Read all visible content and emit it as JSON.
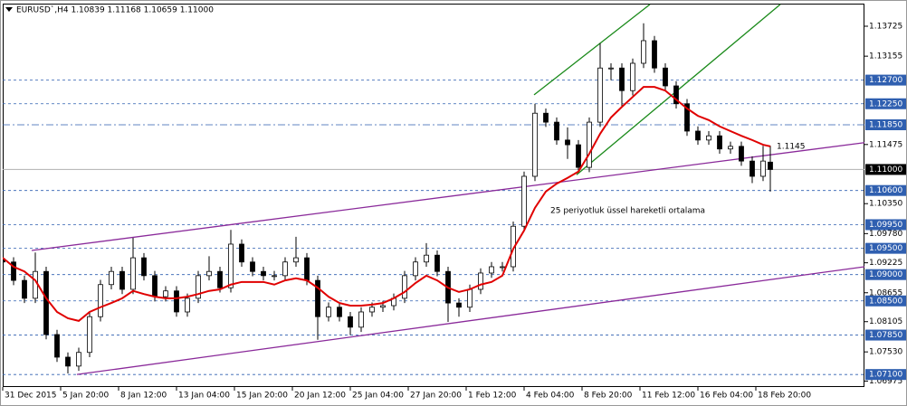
{
  "chart_data": {
    "type": "candlestick",
    "title": "EURUSD`,H4  1.10839 1.11168 1.10659 1.11000",
    "xlim": [
      0,
      238
    ],
    "ylim": [
      1.06862,
      1.14155
    ],
    "xticks": [
      {
        "value": 0,
        "label": "31 Dec 2015"
      },
      {
        "value": 16,
        "label": "5 Jan 20:00"
      },
      {
        "value": 32,
        "label": "8 Jan 12:00"
      },
      {
        "value": 48,
        "label": "13 Jan 04:00"
      },
      {
        "value": 64,
        "label": "15 Jan 20:00"
      },
      {
        "value": 80,
        "label": "20 Jan 12:00"
      },
      {
        "value": 96,
        "label": "25 Jan 04:00"
      },
      {
        "value": 112,
        "label": "27 Jan 20:00"
      },
      {
        "value": 128,
        "label": "1 Feb 12:00"
      },
      {
        "value": 144,
        "label": "4 Feb 04:00"
      },
      {
        "value": 160,
        "label": "8 Feb 20:00"
      },
      {
        "value": 176,
        "label": "11 Feb 12:00"
      },
      {
        "value": 192,
        "label": "16 Feb 04:00"
      },
      {
        "value": 208,
        "label": "18 Feb 20:00"
      }
    ],
    "yticks": [
      1.13725,
      1.13155,
      1.11475,
      {
        "value": 1.1035,
        "label": "1.10350"
      },
      {
        "value": 1.0978,
        "label": "1.09780"
      },
      1.09225,
      1.08655,
      1.08105,
      {
        "value": 1.0753,
        "label": "1.07530"
      },
      1.06975
    ],
    "levels": [
      {
        "value": 1.127,
        "label": "1.12700",
        "style": "dashed"
      },
      {
        "value": 1.1225,
        "label": "1.12250",
        "style": "dashed"
      },
      {
        "value": 1.1185,
        "label": "1.11850",
        "style": "dashdot"
      },
      {
        "value": 1.106,
        "label": "1.10600",
        "style": "dashed"
      },
      {
        "value": 1.0995,
        "label": "1.09950",
        "style": "dashed"
      },
      {
        "value": 1.095,
        "label": "1.09500",
        "style": "dashed"
      },
      {
        "value": 1.09,
        "label": "1.09000",
        "style": "dashed"
      },
      {
        "value": 1.085,
        "label": "1.08500",
        "style": "dashed"
      },
      {
        "value": 1.0785,
        "label": "1.07850",
        "style": "dashed"
      },
      {
        "value": 1.071,
        "label": "1.07100",
        "style": "dashed"
      }
    ],
    "level_color": "#2f5fb0",
    "current_price": {
      "value": 1.11,
      "label": "1.11000"
    },
    "x": [
      0,
      3,
      6,
      9,
      12,
      15,
      18,
      21,
      24,
      27,
      30,
      33,
      36,
      39,
      42,
      45,
      48,
      51,
      54,
      57,
      60,
      63,
      66,
      69,
      72,
      75,
      78,
      81,
      84,
      87,
      90,
      93,
      96,
      99,
      102,
      105,
      108,
      111,
      114,
      117,
      120,
      123,
      126,
      129,
      132,
      135,
      138,
      141,
      144,
      147,
      150,
      153,
      156,
      159,
      162,
      165,
      168,
      171,
      174,
      177,
      180,
      183,
      186,
      189,
      192,
      195,
      198,
      201,
      204,
      207,
      210,
      212
    ],
    "open": [
      1.093,
      1.0924,
      1.0889,
      1.0855,
      1.0906,
      1.0786,
      1.0743,
      1.0726,
      1.0752,
      1.082,
      1.0881,
      1.0906,
      1.0872,
      1.0932,
      1.0898,
      1.0858,
      1.0869,
      1.0829,
      1.0855,
      1.0898,
      1.0906,
      1.0875,
      1.0958,
      1.0924,
      1.0906,
      1.0898,
      1.0898,
      1.0924,
      1.0932,
      1.0889,
      1.082,
      1.0838,
      1.082,
      1.08,
      1.0829,
      1.0838,
      1.0841,
      1.0855,
      1.0898,
      1.0924,
      1.0937,
      1.0906,
      1.0846,
      1.0838,
      1.0872,
      1.0903,
      1.0915,
      1.0915,
      1.0992,
      1.1087,
      1.1207,
      1.119,
      1.1156,
      1.1147,
      1.1104,
      1.119,
      1.1293,
      1.1293,
      1.125,
      1.1302,
      1.1345,
      1.1293,
      1.1259,
      1.1225,
      1.1173,
      1.1156,
      1.1164,
      1.1139,
      1.1144,
      1.1116,
      1.1087,
      1.1114
    ],
    "high": [
      1.0939,
      1.0933,
      1.0898,
      1.0942,
      1.0915,
      1.0795,
      1.0752,
      1.0761,
      1.0829,
      1.089,
      1.0915,
      1.0915,
      1.097,
      1.0941,
      1.0907,
      1.0878,
      1.0878,
      1.0864,
      1.0907,
      1.0935,
      1.0915,
      1.0985,
      1.0967,
      1.0933,
      1.0915,
      1.0907,
      1.0933,
      1.0972,
      1.0941,
      1.0898,
      1.0847,
      1.0847,
      1.0829,
      1.0838,
      1.0847,
      1.085,
      1.0864,
      1.0907,
      1.0933,
      1.096,
      1.0946,
      1.0915,
      1.0855,
      1.0881,
      1.0912,
      1.0924,
      1.0924,
      1.1001,
      1.1096,
      1.1225,
      1.1216,
      1.1199,
      1.118,
      1.1156,
      1.1199,
      1.134,
      1.1302,
      1.1302,
      1.1311,
      1.1378,
      1.1354,
      1.1302,
      1.1268,
      1.1234,
      1.1182,
      1.1173,
      1.1173,
      1.1153,
      1.1153,
      1.1125,
      1.1145,
      1.1145
    ],
    "low": [
      1.0915,
      1.088,
      1.0846,
      1.0846,
      1.0777,
      1.0734,
      1.0712,
      1.0717,
      1.0743,
      1.0811,
      1.0872,
      1.0863,
      1.0863,
      1.0889,
      1.0849,
      1.0849,
      1.082,
      1.082,
      1.0846,
      1.0889,
      1.0866,
      1.0866,
      1.0915,
      1.0897,
      1.0889,
      1.0889,
      1.0889,
      1.0915,
      1.088,
      1.0776,
      1.0811,
      1.0811,
      1.0785,
      1.0791,
      1.082,
      1.0829,
      1.0832,
      1.0846,
      1.0889,
      1.0915,
      1.0897,
      1.081,
      1.082,
      1.0829,
      1.0863,
      1.0894,
      1.0906,
      1.0906,
      1.0983,
      1.1078,
      1.1181,
      1.1147,
      1.112,
      1.1095,
      1.1095,
      1.1181,
      1.127,
      1.122,
      1.1241,
      1.1293,
      1.1284,
      1.125,
      1.1216,
      1.1164,
      1.1147,
      1.1147,
      1.113,
      1.113,
      1.1107,
      1.1074,
      1.1078,
      1.1058
    ],
    "close": [
      1.0924,
      1.0889,
      1.0855,
      1.0906,
      1.0786,
      1.0743,
      1.0726,
      1.0752,
      1.082,
      1.0881,
      1.0906,
      1.0872,
      1.0932,
      1.0898,
      1.0858,
      1.0869,
      1.0829,
      1.0855,
      1.0898,
      1.0906,
      1.0875,
      1.0958,
      1.0924,
      1.0906,
      1.0898,
      1.0898,
      1.0924,
      1.0932,
      1.0889,
      1.082,
      1.0838,
      1.082,
      1.08,
      1.0829,
      1.0838,
      1.0841,
      1.0855,
      1.0898,
      1.0924,
      1.0937,
      1.0906,
      1.0846,
      1.0838,
      1.0872,
      1.0903,
      1.0915,
      1.0915,
      1.0992,
      1.1087,
      1.1207,
      1.119,
      1.1156,
      1.1147,
      1.1104,
      1.119,
      1.1293,
      1.1293,
      1.125,
      1.1302,
      1.1345,
      1.1293,
      1.1259,
      1.1225,
      1.1173,
      1.1156,
      1.1164,
      1.1139,
      1.1144,
      1.1116,
      1.1087,
      1.1116,
      1.11
    ],
    "ema": {
      "color": "#e00000",
      "values": [
        1.0932,
        1.0915,
        1.0906,
        1.0889,
        1.0855,
        1.0829,
        1.0817,
        1.0812,
        1.0829,
        1.0838,
        1.0846,
        1.0855,
        1.0869,
        1.0863,
        1.0858,
        1.0855,
        1.0855,
        1.0858,
        1.0863,
        1.0869,
        1.0872,
        1.0881,
        1.0886,
        1.0886,
        1.0886,
        1.0881,
        1.0889,
        1.0893,
        1.0889,
        1.0875,
        1.0858,
        1.0846,
        1.0841,
        1.0841,
        1.0843,
        1.0846,
        1.0855,
        1.0867,
        1.0884,
        1.0898,
        1.0889,
        1.0875,
        1.0867,
        1.0872,
        1.0881,
        1.0886,
        1.0898,
        1.0949,
        1.0984,
        1.1027,
        1.1058,
        1.1073,
        1.1084,
        1.1096,
        1.113,
        1.1168,
        1.1199,
        1.1219,
        1.1238,
        1.1257,
        1.1257,
        1.125,
        1.1233,
        1.1216,
        1.1202,
        1.1194,
        1.1182,
        1.1173,
        1.1164,
        1.1156,
        1.1147,
        1.1144
      ]
    },
    "trendlines": [
      {
        "color": "#8a2a9a",
        "x": [
          8,
          238
        ],
        "y": [
          1.0946,
          1.1151
        ]
      },
      {
        "color": "#8a2a9a",
        "x": [
          20.5,
          238
        ],
        "y": [
          1.071,
          1.0915
        ]
      },
      {
        "color": "#1a8a1a",
        "x": [
          146.75,
          178.75
        ],
        "y": [
          1.1242,
          1.1414
        ]
      },
      {
        "color": "#1a8a1a",
        "x": [
          158.5,
          214.75
        ],
        "y": [
          1.109,
          1.1414
        ]
      }
    ],
    "annotations": [
      "1.1145",
      "25 periyotluk üssel hareketli ortalama"
    ]
  }
}
